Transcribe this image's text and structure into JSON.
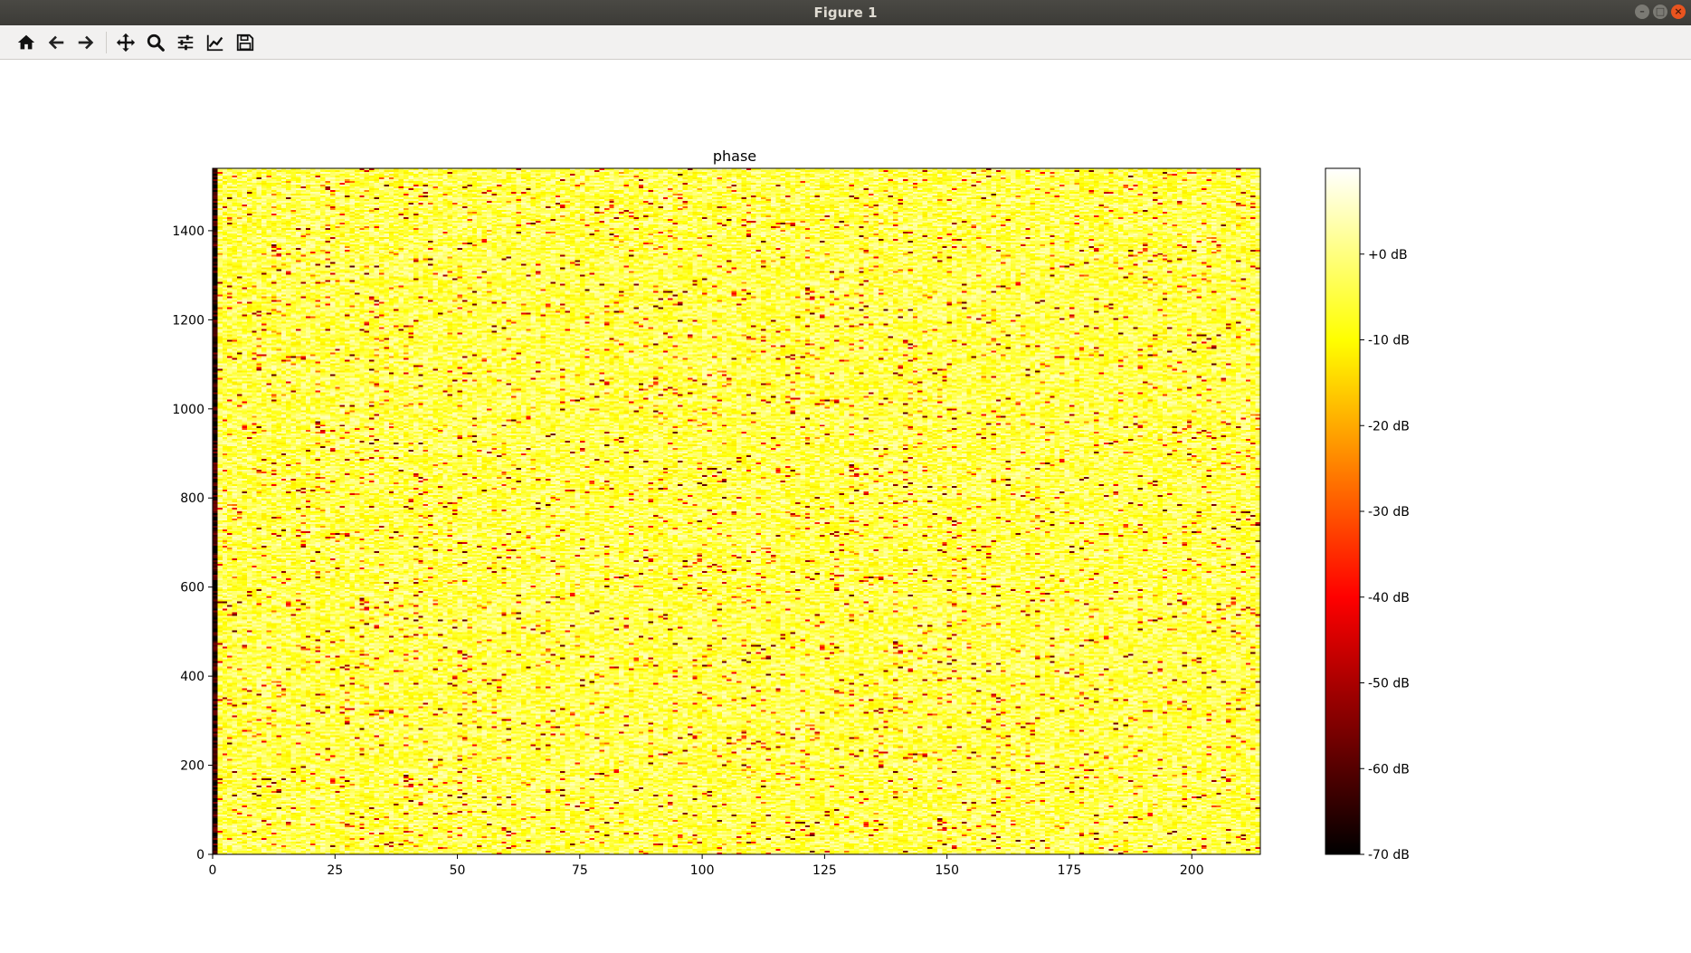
{
  "window": {
    "title": "Figure 1"
  },
  "toolbar": {
    "buttons": [
      "home-icon",
      "back-arrow-icon",
      "forward-arrow-icon",
      "pan-icon",
      "zoom-icon",
      "configure-subplots-icon",
      "edit-axis-icon",
      "save-icon"
    ]
  },
  "chart_data": {
    "type": "heatmap",
    "title": "phase",
    "xlabel": "",
    "ylabel": "",
    "xlim": [
      0,
      214
    ],
    "ylim": [
      0,
      1540
    ],
    "x_ticks": [
      0,
      25,
      50,
      75,
      100,
      125,
      150,
      175,
      200
    ],
    "y_ticks": [
      0,
      200,
      400,
      600,
      800,
      1000,
      1200,
      1400
    ],
    "colormap": "hot",
    "colorbar": {
      "range": [
        -70,
        10
      ],
      "ticks": [
        -70,
        -60,
        -50,
        -40,
        -30,
        -20,
        -10,
        0
      ],
      "tick_labels": [
        "-70 dB",
        "-60 dB",
        "-50 dB",
        "-40 dB",
        "-30 dB",
        "-20 dB",
        "-10 dB",
        "+0 dB"
      ]
    },
    "description_values": {
      "typical_level_db": [
        -12,
        5
      ],
      "outlier_level_db": [
        -60,
        -20
      ],
      "first_column_level_db": -65
    },
    "grid": false
  }
}
